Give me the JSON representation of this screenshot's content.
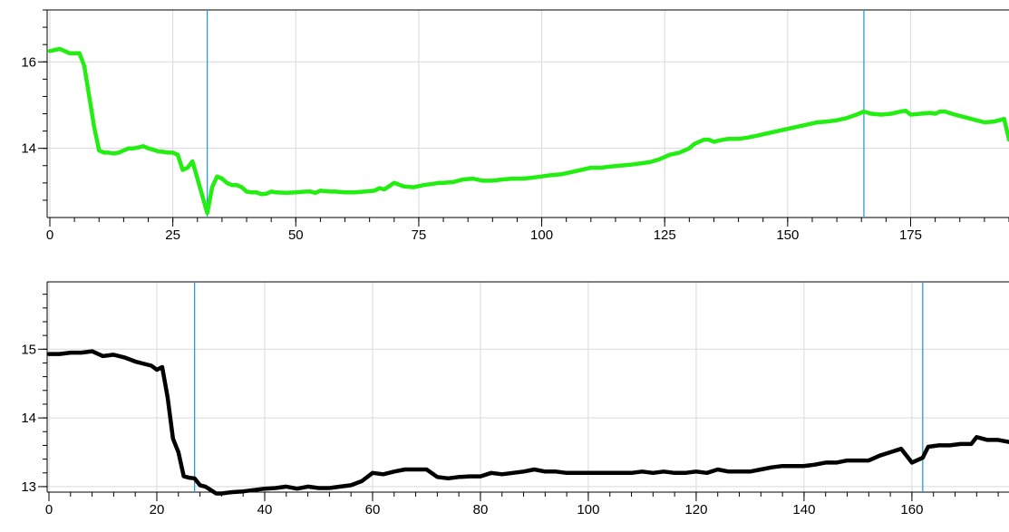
{
  "chart_data": [
    {
      "type": "line",
      "title": "",
      "xlabel": "",
      "ylabel": "",
      "xlim": [
        0,
        195
      ],
      "ylim": [
        12.4,
        17.2
      ],
      "x_ticks": [
        0,
        25,
        50,
        75,
        100,
        125,
        150,
        175
      ],
      "x_tick_labels": [
        "0",
        "25",
        "50",
        "75",
        "100",
        "125",
        "150",
        "175"
      ],
      "y_ticks": [
        14,
        16
      ],
      "y_tick_labels": [
        "14",
        "16"
      ],
      "grid": true,
      "cursor_lines_x": [
        32,
        165.5
      ],
      "series": [
        {
          "color": "#22ee11",
          "x": [
            0,
            2,
            4,
            6,
            7,
            8,
            9,
            10,
            11,
            12,
            13,
            14,
            15,
            16,
            17,
            18,
            19,
            20,
            21,
            22,
            23,
            24,
            25,
            26,
            27,
            28,
            29,
            30,
            31,
            32,
            33,
            34,
            35,
            36,
            37,
            38,
            39,
            40,
            41,
            42,
            43,
            44,
            45,
            46,
            48,
            50,
            52,
            53,
            54,
            55,
            57,
            58,
            60,
            62,
            64,
            66,
            67,
            68,
            70,
            72,
            74,
            76,
            78,
            79,
            80,
            82,
            84,
            86,
            88,
            90,
            92,
            94,
            96,
            98,
            100,
            102,
            104,
            106,
            108,
            110,
            112,
            114,
            116,
            118,
            120,
            122,
            124,
            126,
            128,
            130,
            131,
            132,
            133,
            134,
            135,
            136,
            137,
            138,
            140,
            142,
            144,
            146,
            148,
            150,
            152,
            154,
            156,
            158,
            160,
            162,
            164,
            165.5,
            167,
            169,
            171,
            173,
            174,
            175,
            177,
            179,
            180,
            181,
            182,
            184,
            186,
            188,
            190,
            192,
            193,
            194,
            195
          ],
          "values": [
            16.25,
            16.3,
            16.2,
            16.2,
            15.9,
            15.2,
            14.5,
            13.95,
            13.9,
            13.9,
            13.88,
            13.9,
            13.95,
            14.0,
            14.0,
            14.02,
            14.05,
            14.0,
            13.97,
            13.93,
            13.92,
            13.9,
            13.9,
            13.85,
            13.5,
            13.55,
            13.7,
            13.3,
            12.9,
            12.5,
            13.1,
            13.35,
            13.3,
            13.2,
            13.15,
            13.15,
            13.1,
            13.0,
            12.98,
            12.98,
            12.94,
            12.95,
            13.0,
            12.98,
            12.97,
            12.98,
            13.0,
            13.0,
            12.97,
            13.02,
            13.0,
            13.0,
            12.98,
            12.98,
            13.0,
            13.02,
            13.08,
            13.05,
            13.2,
            13.12,
            13.1,
            13.15,
            13.18,
            13.2,
            13.2,
            13.22,
            13.28,
            13.3,
            13.25,
            13.25,
            13.28,
            13.3,
            13.3,
            13.32,
            13.35,
            13.38,
            13.4,
            13.45,
            13.5,
            13.55,
            13.55,
            13.58,
            13.6,
            13.62,
            13.65,
            13.68,
            13.75,
            13.85,
            13.9,
            14.0,
            14.1,
            14.15,
            14.2,
            14.2,
            14.15,
            14.18,
            14.2,
            14.22,
            14.22,
            14.25,
            14.3,
            14.35,
            14.4,
            14.45,
            14.5,
            14.55,
            14.6,
            14.62,
            14.65,
            14.7,
            14.78,
            14.85,
            14.8,
            14.78,
            14.8,
            14.85,
            14.87,
            14.78,
            14.8,
            14.82,
            14.8,
            14.85,
            14.85,
            14.78,
            14.72,
            14.66,
            14.6,
            14.62,
            14.65,
            14.68,
            14.2
          ]
        }
      ]
    },
    {
      "type": "line",
      "title": "",
      "xlabel": "",
      "ylabel": "",
      "xlim": [
        0,
        178
      ],
      "ylim": [
        12.92,
        15.98
      ],
      "x_ticks": [
        0,
        20,
        40,
        60,
        80,
        100,
        120,
        140,
        160
      ],
      "x_tick_labels": [
        "0",
        "20",
        "40",
        "60",
        "80",
        "100",
        "120",
        "140",
        "160"
      ],
      "y_ticks": [
        13,
        14,
        15
      ],
      "y_tick_labels": [
        "13",
        "14",
        "15"
      ],
      "grid": true,
      "cursor_lines_x": [
        27,
        162
      ],
      "series": [
        {
          "color": "#000000",
          "x": [
            0,
            2,
            4,
            6,
            8,
            10,
            12,
            14,
            16,
            18,
            19,
            20,
            21,
            22,
            23,
            24,
            25,
            26,
            27,
            28,
            29,
            30,
            31,
            32,
            34,
            36,
            38,
            40,
            42,
            44,
            46,
            48,
            50,
            52,
            54,
            56,
            58,
            60,
            62,
            64,
            66,
            68,
            70,
            72,
            74,
            76,
            78,
            80,
            82,
            84,
            86,
            88,
            90,
            92,
            94,
            96,
            98,
            100,
            102,
            104,
            106,
            108,
            110,
            112,
            114,
            116,
            118,
            120,
            122,
            124,
            126,
            128,
            130,
            132,
            134,
            136,
            138,
            140,
            142,
            144,
            146,
            148,
            150,
            152,
            154,
            156,
            158,
            159,
            160,
            162,
            163,
            165,
            167,
            169,
            171,
            172,
            174,
            176,
            178
          ],
          "values": [
            14.93,
            14.93,
            14.95,
            14.95,
            14.97,
            14.9,
            14.92,
            14.88,
            14.82,
            14.78,
            14.76,
            14.7,
            14.74,
            14.3,
            13.7,
            13.5,
            13.15,
            13.13,
            13.12,
            13.02,
            13.0,
            12.95,
            12.9,
            12.9,
            12.92,
            12.93,
            12.95,
            12.97,
            12.98,
            13.0,
            12.97,
            13.0,
            12.98,
            12.98,
            13.0,
            13.02,
            13.08,
            13.2,
            13.18,
            13.22,
            13.25,
            13.25,
            13.25,
            13.14,
            13.12,
            13.14,
            13.15,
            13.15,
            13.2,
            13.18,
            13.2,
            13.22,
            13.25,
            13.22,
            13.22,
            13.2,
            13.2,
            13.2,
            13.2,
            13.2,
            13.2,
            13.2,
            13.22,
            13.2,
            13.22,
            13.2,
            13.2,
            13.22,
            13.2,
            13.25,
            13.22,
            13.22,
            13.22,
            13.25,
            13.28,
            13.3,
            13.3,
            13.3,
            13.32,
            13.35,
            13.35,
            13.38,
            13.38,
            13.38,
            13.45,
            13.5,
            13.55,
            13.45,
            13.35,
            13.42,
            13.58,
            13.6,
            13.6,
            13.62,
            13.62,
            13.72,
            13.68,
            13.68,
            13.65
          ]
        }
      ]
    }
  ]
}
